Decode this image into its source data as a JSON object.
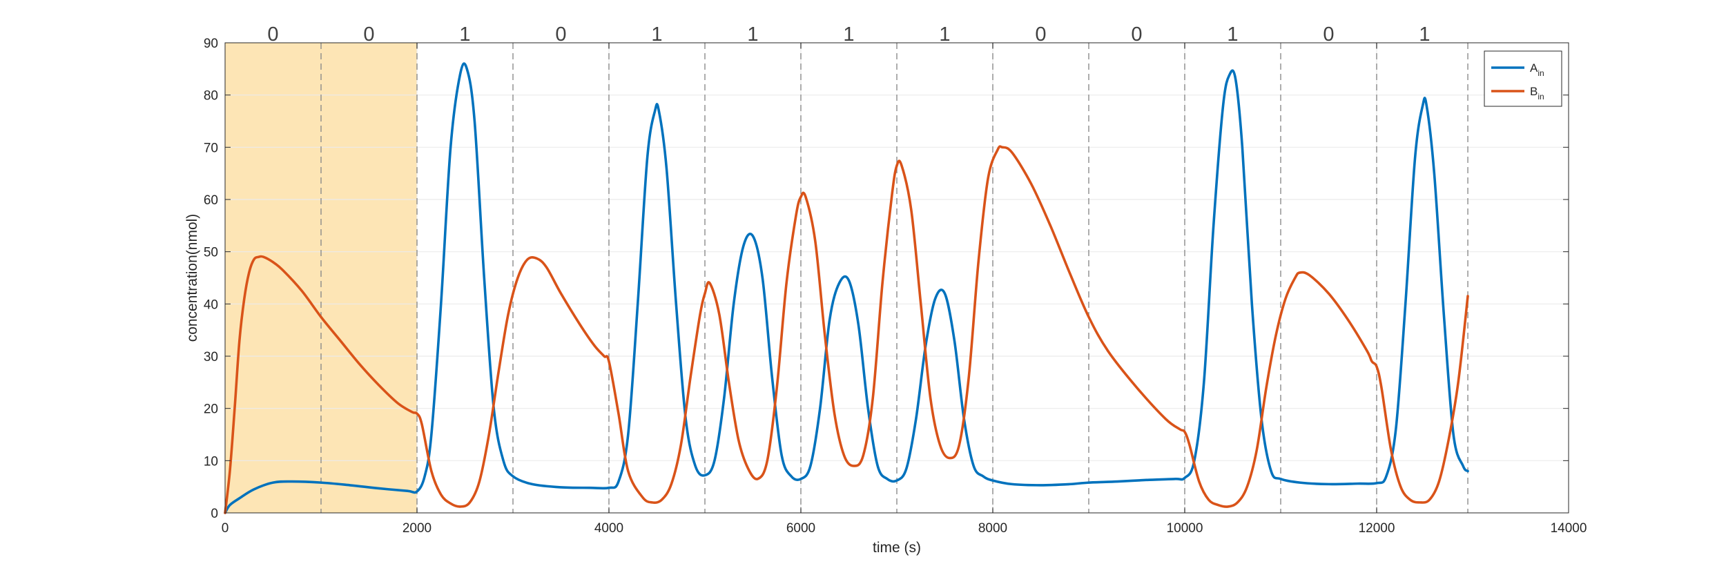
{
  "chart_data": {
    "type": "line",
    "xlabel": "time (s)",
    "ylabel": "concentration(nmol)",
    "xlim": [
      0,
      14000
    ],
    "ylim": [
      0,
      90
    ],
    "x_ticks": [
      0,
      2000,
      4000,
      6000,
      8000,
      10000,
      12000,
      14000
    ],
    "y_ticks": [
      0,
      10,
      20,
      30,
      40,
      50,
      60,
      70,
      80,
      90
    ],
    "grid": true,
    "legend_position": "top-right",
    "shaded_region": {
      "x": [
        0,
        2000
      ],
      "color": "#fde5b5"
    },
    "boundaries": [
      1000,
      2000,
      3000,
      4000,
      5000,
      6000,
      7000,
      8000,
      9000,
      10000,
      11000,
      12000,
      12950
    ],
    "bit_labels": [
      {
        "x": 500,
        "label": "0"
      },
      {
        "x": 1500,
        "label": "0"
      },
      {
        "x": 2500,
        "label": "1"
      },
      {
        "x": 3500,
        "label": "0"
      },
      {
        "x": 4500,
        "label": "1"
      },
      {
        "x": 5500,
        "label": "1"
      },
      {
        "x": 6500,
        "label": "1"
      },
      {
        "x": 7500,
        "label": "1"
      },
      {
        "x": 8500,
        "label": "0"
      },
      {
        "x": 9500,
        "label": "0"
      },
      {
        "x": 10500,
        "label": "1"
      },
      {
        "x": 11500,
        "label": "0"
      },
      {
        "x": 12500,
        "label": "1"
      }
    ],
    "series": [
      {
        "name": "A",
        "name_sub": "in",
        "color": "#0072bd",
        "x": [
          0,
          50,
          150,
          300,
          500,
          700,
          1000,
          1300,
          1600,
          1900,
          2000,
          2080,
          2150,
          2250,
          2350,
          2450,
          2520,
          2600,
          2700,
          2800,
          2900,
          3000,
          3200,
          3500,
          3800,
          4000,
          4100,
          4200,
          4300,
          4400,
          4480,
          4520,
          4600,
          4700,
          4800,
          4900,
          5000,
          5100,
          5200,
          5300,
          5400,
          5500,
          5600,
          5700,
          5800,
          5900,
          6000,
          6100,
          6200,
          6300,
          6400,
          6500,
          6600,
          6700,
          6800,
          6900,
          7000,
          7100,
          7200,
          7300,
          7400,
          7500,
          7600,
          7700,
          7800,
          7900,
          8000,
          8200,
          8500,
          8800,
          9000,
          9300,
          9600,
          9900,
          10000,
          10100,
          10200,
          10300,
          10400,
          10470,
          10530,
          10600,
          10700,
          10800,
          10900,
          11000,
          11200,
          11500,
          11800,
          12000,
          12100,
          12200,
          12300,
          12400,
          12480,
          12520,
          12600,
          12700,
          12800,
          12900,
          12950
        ],
        "y": [
          0,
          1.5,
          2.8,
          4.5,
          5.8,
          6.0,
          5.8,
          5.3,
          4.7,
          4.2,
          4.1,
          7,
          15,
          40,
          70,
          84,
          85,
          75,
          45,
          20,
          10,
          7,
          5.5,
          4.9,
          4.8,
          4.8,
          6,
          15,
          40,
          68,
          77,
          77,
          66,
          40,
          18,
          9,
          7.2,
          10,
          22,
          40,
          51,
          53,
          45,
          26,
          11,
          7,
          6.5,
          9,
          20,
          37,
          44,
          44.5,
          36,
          20,
          9,
          6.5,
          6.2,
          8.5,
          18,
          32,
          41,
          42,
          33,
          18,
          9,
          7,
          6.2,
          5.5,
          5.3,
          5.5,
          5.8,
          6.0,
          6.3,
          6.5,
          6.7,
          10,
          25,
          55,
          78,
          84,
          83,
          70,
          40,
          18,
          8,
          6.5,
          5.8,
          5.5,
          5.6,
          5.7,
          7,
          16,
          40,
          68,
          78,
          78,
          65,
          38,
          15,
          9,
          8
        ]
      },
      {
        "name": "B",
        "name_sub": "in",
        "color": "#d95319",
        "x": [
          0,
          50,
          100,
          150,
          200,
          250,
          300,
          350,
          400,
          500,
          600,
          800,
          1000,
          1200,
          1400,
          1600,
          1800,
          1950,
          2000,
          2050,
          2150,
          2250,
          2350,
          2450,
          2550,
          2650,
          2750,
          2850,
          2950,
          3050,
          3150,
          3250,
          3350,
          3500,
          3700,
          3850,
          3950,
          4000,
          4100,
          4200,
          4350,
          4450,
          4550,
          4650,
          4750,
          4850,
          4950,
          5000,
          5050,
          5150,
          5250,
          5350,
          5450,
          5550,
          5650,
          5750,
          5850,
          5950,
          6000,
          6050,
          6150,
          6250,
          6350,
          6450,
          6550,
          6650,
          6750,
          6850,
          6950,
          7000,
          7050,
          7150,
          7250,
          7350,
          7450,
          7550,
          7650,
          7750,
          7850,
          7950,
          8050,
          8100,
          8200,
          8400,
          8600,
          8800,
          9000,
          9200,
          9500,
          9800,
          9950,
          10000,
          10050,
          10150,
          10250,
          10350,
          10450,
          10550,
          10650,
          10750,
          10850,
          10950,
          11050,
          11150,
          11200,
          11300,
          11500,
          11700,
          11900,
          11950,
          12000,
          12050,
          12150,
          12250,
          12350,
          12450,
          12550,
          12650,
          12750,
          12850,
          12950
        ],
        "y": [
          0,
          8,
          20,
          33,
          41,
          46,
          48.5,
          49,
          49,
          48,
          46.5,
          42.5,
          37.5,
          33,
          28.5,
          24.5,
          21,
          19.3,
          19,
          17,
          8,
          3.5,
          1.8,
          1.2,
          2,
          6,
          15,
          27,
          38,
          45,
          48.5,
          48.7,
          47,
          42,
          36,
          32,
          30,
          29,
          19,
          8,
          3,
          2,
          2.5,
          5.5,
          13,
          26,
          38,
          42,
          44,
          38,
          25,
          14,
          8.5,
          6.5,
          10,
          24,
          44,
          57,
          60.5,
          60.5,
          52,
          34,
          19,
          11,
          9,
          11,
          22,
          44,
          61,
          66.5,
          66.5,
          58,
          40,
          22,
          13,
          10.5,
          13,
          26,
          48,
          64,
          69.5,
          70,
          69,
          63,
          55,
          46,
          37.5,
          31,
          24,
          18,
          16,
          15.5,
          13,
          6,
          2.5,
          1.5,
          1.2,
          2,
          5,
          12,
          24,
          34,
          41,
          45,
          46,
          45.5,
          42,
          37,
          31,
          29,
          28,
          24,
          12,
          5,
          2.5,
          2,
          2.5,
          6,
          14,
          25,
          41.5
        ]
      }
    ]
  }
}
